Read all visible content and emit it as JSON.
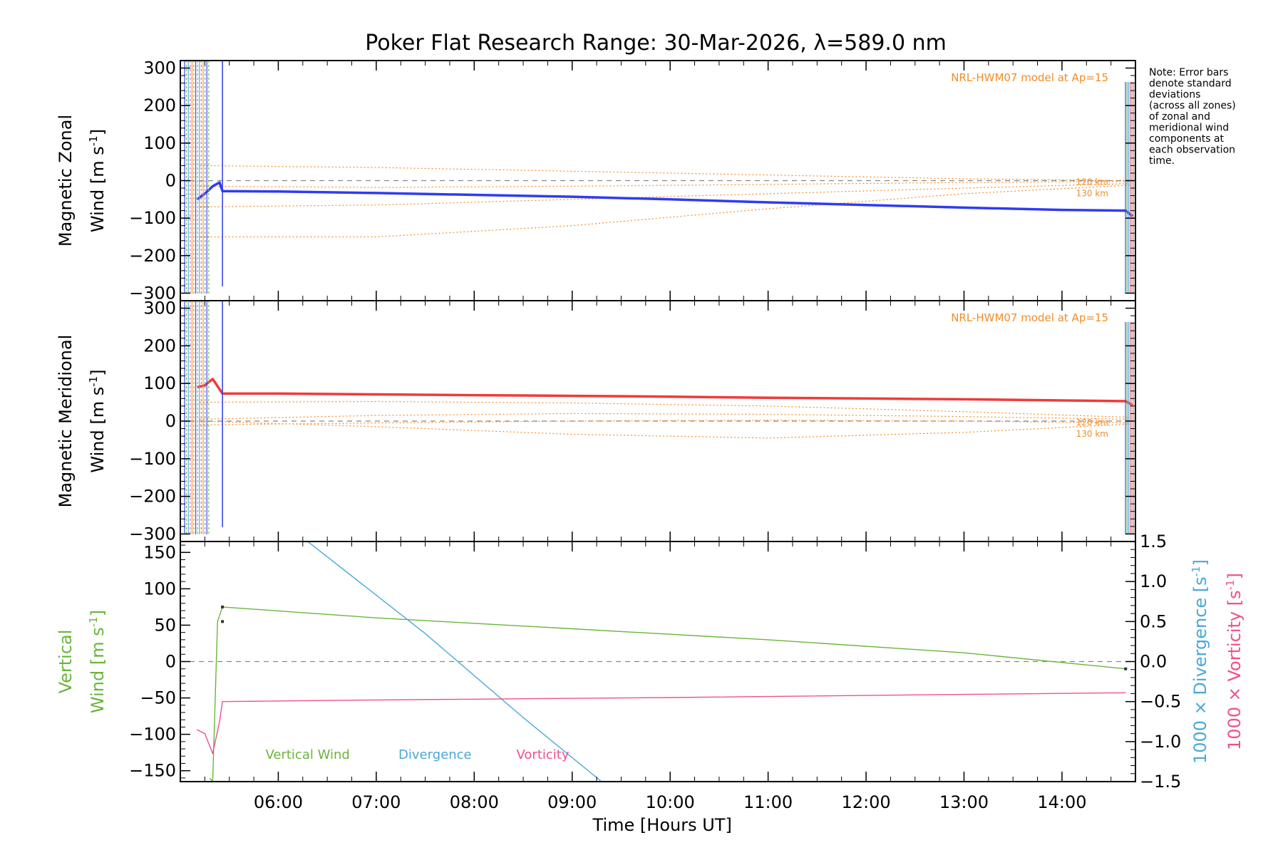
{
  "colors": {
    "zonal": "#2f3cf0",
    "meridional": "#f03a3a",
    "vertical": "#6ab53a",
    "divergence": "#4aa8d8",
    "vorticity": "#f0508a",
    "model": "#f28c28",
    "zero": "#888888"
  },
  "chart_data": [
    {
      "panel": "zonal",
      "type": "line",
      "title": "Poker Flat Research Range: 30-Mar-2026, λ=589.0 nm",
      "ylabel_line1": "Magnetic Zonal",
      "ylabel_line2": "Wind [m s",
      "ylabel_sup": "-1",
      "ylabel_close": "]",
      "ylim": [
        -320,
        320
      ],
      "yticks": [
        300,
        200,
        100,
        0,
        -100,
        -200,
        -300
      ],
      "ytick_labels": [
        "300",
        "200",
        "100",
        "0",
        "−100",
        "−200",
        "−300"
      ],
      "model_label": "NRL-HWM07 model at Ap=15",
      "alt_labels": [
        "120 km",
        "130 km"
      ],
      "series": [
        {
          "name": "Magnetic Zonal Wind",
          "x": [
            5.17,
            5.25,
            5.33,
            5.4,
            5.43,
            6.0,
            7.0,
            8.0,
            9.0,
            10.0,
            11.0,
            12.0,
            13.0,
            14.0,
            14.65,
            14.72
          ],
          "values": [
            -50,
            -35,
            -15,
            -5,
            -28,
            -29,
            -33,
            -38,
            -43,
            -50,
            -58,
            -65,
            -72,
            -78,
            -80,
            -95
          ]
        }
      ],
      "model_series": [
        {
          "name": "model-upper",
          "x": [
            5.2,
            7.0,
            9.0,
            11.0,
            13.0,
            14.7
          ],
          "values": [
            40,
            35,
            25,
            15,
            5,
            0
          ]
        },
        {
          "name": "model-mid1",
          "x": [
            5.2,
            7.0,
            9.0,
            11.0,
            13.0,
            14.7
          ],
          "values": [
            -15,
            -18,
            -15,
            -10,
            -5,
            -2
          ]
        },
        {
          "name": "model-mid2",
          "x": [
            5.2,
            7.0,
            9.0,
            11.0,
            13.0,
            14.7
          ],
          "values": [
            -70,
            -65,
            -50,
            -35,
            -20,
            -8
          ]
        },
        {
          "name": "model-lower",
          "x": [
            5.2,
            7.0,
            9.0,
            11.0,
            13.0,
            14.7
          ],
          "values": [
            -150,
            -150,
            -120,
            -75,
            -35,
            -12
          ]
        }
      ]
    },
    {
      "panel": "meridional",
      "type": "line",
      "ylabel_line1": "Magnetic Meridional",
      "ylabel_line2": "Wind [m s",
      "ylabel_sup": "-1",
      "ylabel_close": "]",
      "ylim": [
        -320,
        320
      ],
      "yticks": [
        300,
        200,
        100,
        0,
        -100,
        -200,
        -300
      ],
      "ytick_labels": [
        "300",
        "200",
        "100",
        "0",
        "−100",
        "−200",
        "−300"
      ],
      "model_label": "NRL-HWM07 model at Ap=15",
      "alt_labels": [
        "120 km",
        "130 km"
      ],
      "series": [
        {
          "name": "Magnetic Meridional Wind",
          "x": [
            5.17,
            5.25,
            5.33,
            5.43,
            6.0,
            7.0,
            8.0,
            9.0,
            10.0,
            11.0,
            12.0,
            13.0,
            14.0,
            14.65,
            14.72
          ],
          "values": [
            90,
            95,
            112,
            73,
            73,
            71,
            69,
            67,
            65,
            62,
            60,
            58,
            55,
            53,
            42
          ]
        }
      ],
      "model_series": [
        {
          "name": "model-upper",
          "x": [
            5.2,
            7.0,
            9.0,
            11.0,
            13.0,
            14.7
          ],
          "values": [
            50,
            52,
            48,
            40,
            25,
            10
          ]
        },
        {
          "name": "model-mid1",
          "x": [
            5.2,
            7.0,
            9.0,
            11.0,
            13.0,
            14.7
          ],
          "values": [
            5,
            15,
            20,
            18,
            12,
            5
          ]
        },
        {
          "name": "model-mid2",
          "x": [
            5.2,
            7.0,
            9.0,
            11.0,
            13.0,
            14.7
          ],
          "values": [
            -10,
            -5,
            0,
            2,
            0,
            -5
          ]
        },
        {
          "name": "model-lower",
          "x": [
            5.2,
            7.0,
            9.0,
            11.0,
            13.0,
            14.7
          ],
          "values": [
            0,
            -15,
            -35,
            -45,
            -30,
            -8
          ]
        }
      ]
    },
    {
      "panel": "vertical",
      "type": "line",
      "ylabel_line1": "Vertical",
      "ylabel_line2": "Wind [m s",
      "ylabel_sup": "-1",
      "ylabel_close": "]",
      "ylim": [
        -165,
        165
      ],
      "yticks": [
        150,
        100,
        50,
        0,
        -50,
        -100,
        -150
      ],
      "ytick_labels": [
        "150",
        "100",
        "50",
        "0",
        "−50",
        "−100",
        "−150"
      ],
      "right_ylim": [
        -1.5,
        1.5
      ],
      "right_yticks": [
        1.5,
        1.0,
        0.5,
        0.0,
        -0.5,
        -1.0,
        -1.5
      ],
      "right_ytick_labels": [
        "1.5",
        "1.0",
        "0.5",
        "0.0",
        "−0.5",
        "−1.0",
        "−1.5"
      ],
      "right_label_div": "1000 × Divergence [s",
      "right_label_vort": "1000 × Vorticity [s",
      "right_label_sup": "-1",
      "right_label_close": "]",
      "xlabel": "Time [Hours UT]",
      "xlim": [
        5.0,
        14.75
      ],
      "xticks": [
        6,
        7,
        8,
        9,
        10,
        11,
        12,
        13,
        14
      ],
      "xtick_labels": [
        "06:00",
        "07:00",
        "08:00",
        "09:00",
        "10:00",
        "11:00",
        "12:00",
        "13:00",
        "14:00"
      ],
      "legend": [
        "Vertical Wind",
        "Divergence",
        "Vorticity"
      ],
      "series": [
        {
          "name": "Vertical Wind",
          "axis": "left",
          "x": [
            5.3,
            5.33,
            5.38,
            5.43,
            5.43,
            7.0,
            9.0,
            11.0,
            13.0,
            14.65
          ],
          "values": [
            -160,
            -165,
            55,
            75,
            75,
            60,
            45,
            30,
            12,
            -10
          ]
        },
        {
          "name": "Divergence",
          "axis": "right",
          "x": [
            6.3,
            7.5,
            8.5,
            9.3
          ],
          "values": [
            1.5,
            0.35,
            -0.7,
            -1.5
          ]
        },
        {
          "name": "Vorticity",
          "axis": "right",
          "x": [
            5.17,
            5.25,
            5.33,
            5.4,
            5.43,
            7.0,
            10.0,
            13.0,
            14.65
          ],
          "values": [
            -0.85,
            -0.9,
            -1.15,
            -0.75,
            -0.5,
            -0.48,
            -0.45,
            -0.41,
            -0.39
          ]
        }
      ]
    }
  ],
  "note": {
    "lines": [
      "Note: Error bars",
      "denote standard",
      "deviations",
      "(across all zones)",
      "of zonal and",
      "meridional wind",
      "components at",
      "each observation",
      "time."
    ]
  }
}
